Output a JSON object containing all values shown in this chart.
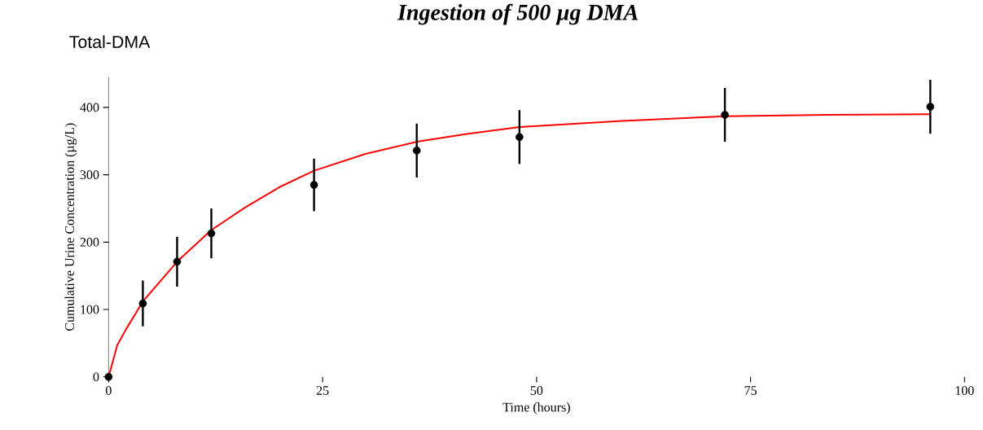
{
  "chart_data": {
    "type": "scatter",
    "title": "Ingestion of 500 µg DMA",
    "subtitle": "Total-DMA",
    "xlabel": "Time (hours)",
    "ylabel": "Cumulative Urine Concentration (µg/L)",
    "xlim": [
      0,
      100
    ],
    "ylim": [
      0,
      445
    ],
    "xticks": [
      0,
      25,
      50,
      75,
      100
    ],
    "yticks": [
      0,
      100,
      200,
      300,
      400
    ],
    "series": [
      {
        "color": "#000000",
        "marker": "circle",
        "x": [
          0,
          4,
          8,
          12,
          24,
          36,
          48,
          72,
          96
        ],
        "values": [
          0,
          109,
          171,
          213,
          285,
          336,
          356,
          389,
          401
        ],
        "errors": [
          null,
          34,
          37,
          37,
          39,
          40,
          40,
          40,
          40
        ]
      },
      {
        "type": "line",
        "color": "#ff0000",
        "marker": "none",
        "line_style": "solid",
        "x": [
          0,
          1,
          2,
          4,
          8,
          12,
          16,
          20,
          24,
          30,
          36,
          42,
          48,
          60,
          72,
          84,
          96
        ],
        "values": [
          0,
          47,
          70,
          112,
          171,
          218,
          252,
          282,
          306,
          331,
          349,
          361,
          371,
          380,
          387,
          389,
          390
        ]
      }
    ]
  }
}
